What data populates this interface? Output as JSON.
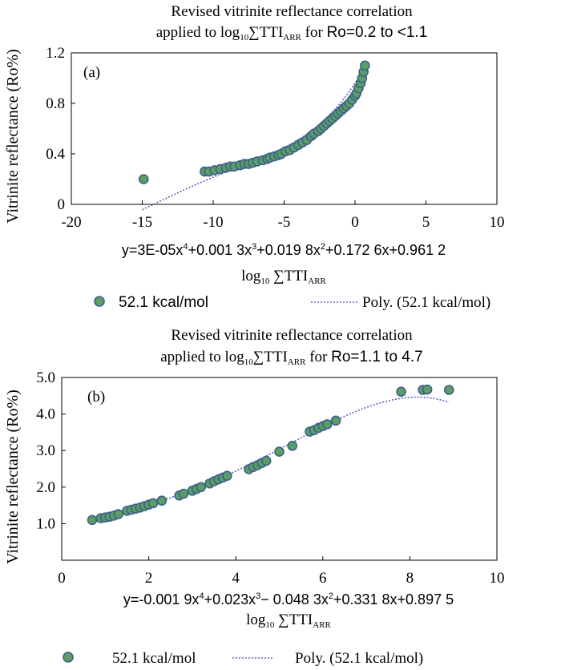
{
  "colors": {
    "marker_fill": "#5a9e62",
    "marker_stroke": "#3d5f8f",
    "trendline": "#6060c0"
  },
  "chart_data": [
    {
      "type": "scatter",
      "panel_label": "(a)",
      "title_line1": "Revised vitrinite reflectance correlation",
      "title_prefix": "applied to log",
      "title_sub10": "10",
      "title_sigma": "∑TTI",
      "title_subarr": "ARR",
      "title_suffix": " for ",
      "title_ro": "Ro=0.2 to <1.1",
      "ylabel": "Vitrinite reflectance (Ro%)",
      "xlabel_log": "log",
      "xlabel_sub10": "10",
      "xlabel_sigma": " ∑TTI",
      "xlabel_subarr": "ARR",
      "xlim": [
        -20,
        10
      ],
      "ylim": [
        0,
        1.2
      ],
      "x_ticks": [
        "-20",
        "-15",
        "-10",
        "-5",
        "0",
        "5",
        "10"
      ],
      "y_ticks": [
        "0",
        "0.4",
        "0.8",
        "1.2"
      ],
      "equation": {
        "p1": "y=3E-05x",
        "s1": "4",
        "p2": "+0.001 3x",
        "s2": "3",
        "p3": "+0.019 8x",
        "s3": "2",
        "p4": "+0.172 6x+0.961 2"
      },
      "trendline_coeffs": [
        0.9612,
        0.1726,
        0.0198,
        0.0013,
        3e-05
      ],
      "trend_range": [
        -15,
        0.7
      ],
      "legend": {
        "series": "52.1 kcal/mol",
        "trend": "Poly. (52.1 kcal/mol)"
      },
      "series": [
        {
          "name": "52.1 kcal/mol",
          "x": [
            -14.9,
            -10.6,
            -10.3,
            -9.9,
            -9.5,
            -9.1,
            -8.8,
            -8.5,
            -8.1,
            -7.8,
            -7.5,
            -7.2,
            -6.9,
            -6.5,
            -6.2,
            -6.0,
            -5.7,
            -5.4,
            -5.2,
            -4.9,
            -4.6,
            -4.3,
            -4.0,
            -3.7,
            -3.4,
            -3.1,
            -2.9,
            -2.6,
            -2.4,
            -2.2,
            -2.0,
            -1.8,
            -1.6,
            -1.4,
            -1.2,
            -1.0,
            -0.8,
            -0.6,
            -0.4,
            -0.2,
            0.0,
            0.1,
            0.25,
            0.4,
            0.5,
            0.6,
            0.7
          ],
          "y": [
            0.2,
            0.26,
            0.26,
            0.27,
            0.28,
            0.29,
            0.3,
            0.3,
            0.31,
            0.32,
            0.32,
            0.33,
            0.34,
            0.35,
            0.36,
            0.37,
            0.38,
            0.39,
            0.4,
            0.42,
            0.43,
            0.45,
            0.47,
            0.49,
            0.51,
            0.54,
            0.56,
            0.58,
            0.6,
            0.62,
            0.64,
            0.66,
            0.68,
            0.7,
            0.72,
            0.74,
            0.76,
            0.78,
            0.8,
            0.83,
            0.86,
            0.88,
            0.92,
            0.96,
            1.0,
            1.05,
            1.1
          ]
        }
      ]
    },
    {
      "type": "scatter",
      "panel_label": "(b)",
      "title_line1": "Revised vitrinite reflectance correlation",
      "title_prefix": "applied to log",
      "title_sub10": "10",
      "title_sigma": "∑TTI",
      "title_subarr": "ARR",
      "title_suffix": " for ",
      "title_ro": "Ro=1.1 to 4.7",
      "ylabel": "Vitrinite reflectance (Ro%)",
      "xlabel_log": "log",
      "xlabel_sub10": "10",
      "xlabel_sigma": " ∑TTI",
      "xlabel_subarr": "ARR",
      "xlim": [
        0,
        10
      ],
      "ylim": [
        0,
        5
      ],
      "x_ticks": [
        "0",
        "2",
        "4",
        "6",
        "8",
        "10"
      ],
      "y_ticks": [
        "1.0",
        "2.0",
        "3.0",
        "4.0",
        "5.0"
      ],
      "equation": {
        "p1": "y=-0.001 9x",
        "s1": "4",
        "p2": "+0.023x",
        "s2": "3",
        "p3": "− 0.048 3x",
        "s3": "2",
        "p4": "+0.331 8x+0.897 5"
      },
      "trendline_coeffs": [
        0.8975,
        0.3318,
        -0.0483,
        0.023,
        -0.0019
      ],
      "trend_range": [
        0.7,
        8.9
      ],
      "legend": {
        "series": "52.1 kcal/mol",
        "trend": "Poly. (52.1 kcal/mol)"
      },
      "series": [
        {
          "name": "52.1 kcal/mol",
          "x": [
            0.7,
            0.9,
            1.0,
            1.1,
            1.2,
            1.3,
            1.5,
            1.6,
            1.7,
            1.8,
            1.9,
            2.0,
            2.1,
            2.3,
            2.7,
            2.8,
            3.0,
            3.1,
            3.2,
            3.4,
            3.5,
            3.6,
            3.7,
            3.8,
            4.3,
            4.4,
            4.5,
            4.6,
            4.7,
            5.0,
            5.3,
            5.7,
            5.8,
            5.9,
            6.0,
            6.1,
            6.3,
            7.8,
            8.3,
            8.4,
            8.9
          ],
          "y": [
            1.1,
            1.15,
            1.17,
            1.19,
            1.22,
            1.26,
            1.35,
            1.38,
            1.41,
            1.44,
            1.48,
            1.52,
            1.56,
            1.63,
            1.77,
            1.82,
            1.9,
            1.95,
            2.0,
            2.1,
            2.16,
            2.21,
            2.26,
            2.31,
            2.49,
            2.55,
            2.6,
            2.66,
            2.72,
            2.97,
            3.13,
            3.52,
            3.56,
            3.62,
            3.67,
            3.72,
            3.82,
            4.61,
            4.66,
            4.67,
            4.66
          ]
        }
      ]
    }
  ]
}
